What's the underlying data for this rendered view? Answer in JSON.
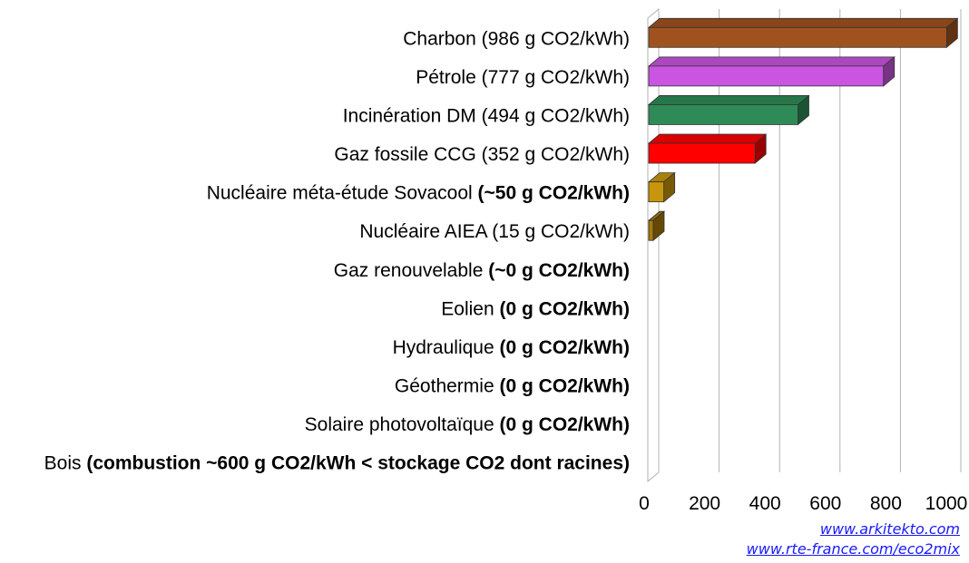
{
  "chart_data": {
    "type": "bar",
    "orientation": "horizontal",
    "categories": [
      {
        "plain": "Charbon (986 g CO2/kWh)",
        "bold": ""
      },
      {
        "plain": "Pétrole (777 g CO2/kWh)",
        "bold": ""
      },
      {
        "plain": "Incinération DM (494 g CO2/kWh)",
        "bold": ""
      },
      {
        "plain": "Gaz fossile CCG (352 g CO2/kWh)",
        "bold": ""
      },
      {
        "plain": "Nucléaire méta-étude Sovacool ",
        "bold": "(~50 g CO2/kWh)"
      },
      {
        "plain": "Nucléaire AIEA (15 g CO2/kWh)",
        "bold": ""
      },
      {
        "plain": "Gaz renouvelable ",
        "bold": "(~0 g CO2/kWh)"
      },
      {
        "plain": "Eolien ",
        "bold": "(0 g CO2/kWh)"
      },
      {
        "plain": "Hydraulique ",
        "bold": "(0 g CO2/kWh)"
      },
      {
        "plain": "Géothermie ",
        "bold": "(0 g CO2/kWh)"
      },
      {
        "plain": "Solaire photovoltaïque ",
        "bold": "(0 g CO2/kWh)"
      },
      {
        "plain": "Bois ",
        "bold": "(combustion ~600 g CO2/kWh < stockage CO2 dont racines)"
      }
    ],
    "values": [
      986,
      777,
      494,
      352,
      50,
      15,
      0,
      0,
      0,
      0,
      0,
      0
    ],
    "colors": [
      "#a0521e",
      "#c955e0",
      "#2e8b57",
      "#ff0000",
      "#c8960a",
      "#a8780a",
      "#cccccc",
      "#cccccc",
      "#cccccc",
      "#cccccc",
      "#cccccc",
      "#cccccc"
    ],
    "xlim": [
      0,
      1000
    ],
    "xticks": [
      0,
      200,
      400,
      600,
      800,
      1000
    ],
    "grid": true,
    "legend": "none",
    "bar_style": "3d"
  },
  "sources": [
    "www.arkitekto.com",
    "www.rte-france.com/eco2mix"
  ]
}
